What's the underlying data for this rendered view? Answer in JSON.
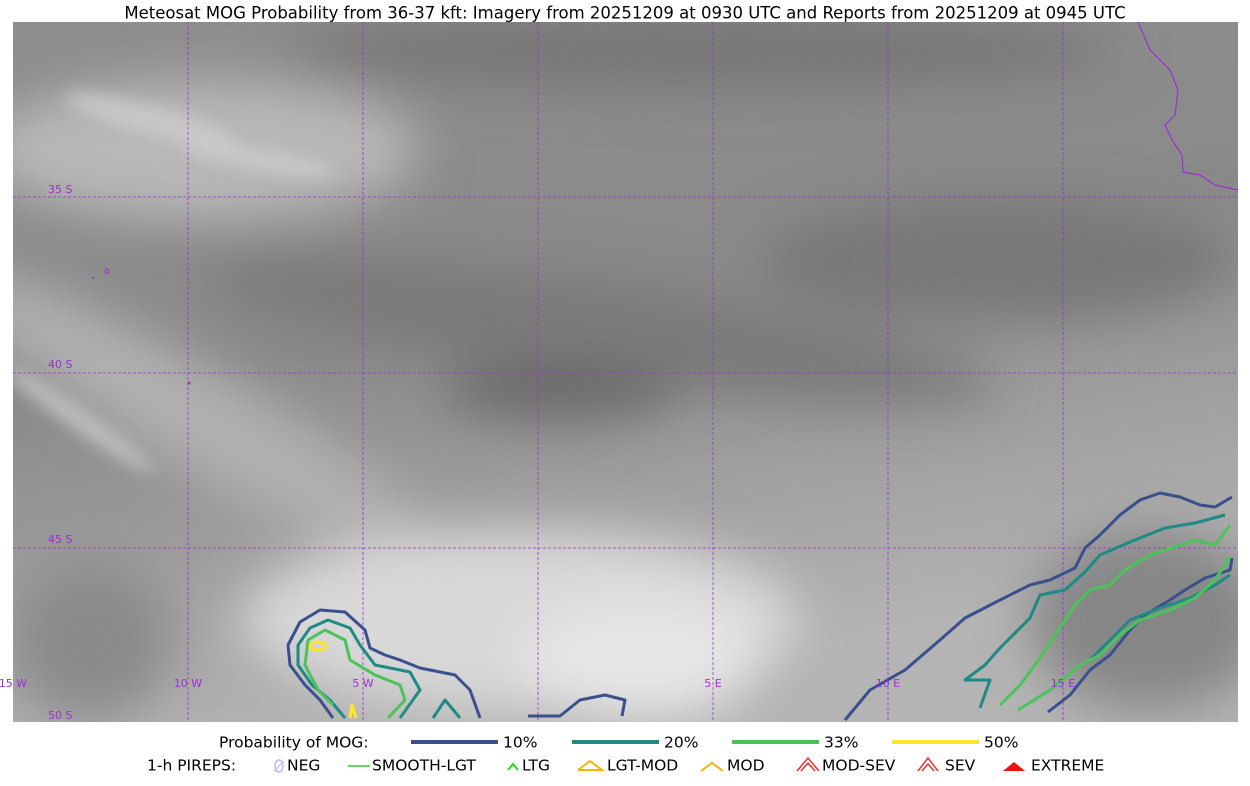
{
  "header": {
    "title": "Meteosat MOG Probability from 36-37 kft: Imagery from 20251209 at 0930 UTC and Reports from 20251209 at 0945 UTC"
  },
  "map": {
    "lat_labels": [
      "35 S",
      "40 S",
      "45 S",
      "50 S"
    ],
    "lon_labels": [
      "15 W",
      "10 W",
      "5 W",
      "5 E",
      "10 E",
      "15 E"
    ]
  },
  "legend": {
    "mog": {
      "title": "Probability of MOG:",
      "items": [
        {
          "label": "10%",
          "color": "#3b4f8c"
        },
        {
          "label": "20%",
          "color": "#1f8a84"
        },
        {
          "label": "33%",
          "color": "#4cc35a"
        },
        {
          "label": "50%",
          "color": "#fde725"
        }
      ]
    },
    "pireps": {
      "title": "1-h PIREPS:",
      "items": [
        "NEG",
        "SMOOTH-LGT",
        "LTG",
        "LGT-MOD",
        "MOD",
        "MOD-SEV",
        "SEV",
        "EXTREME"
      ]
    }
  }
}
